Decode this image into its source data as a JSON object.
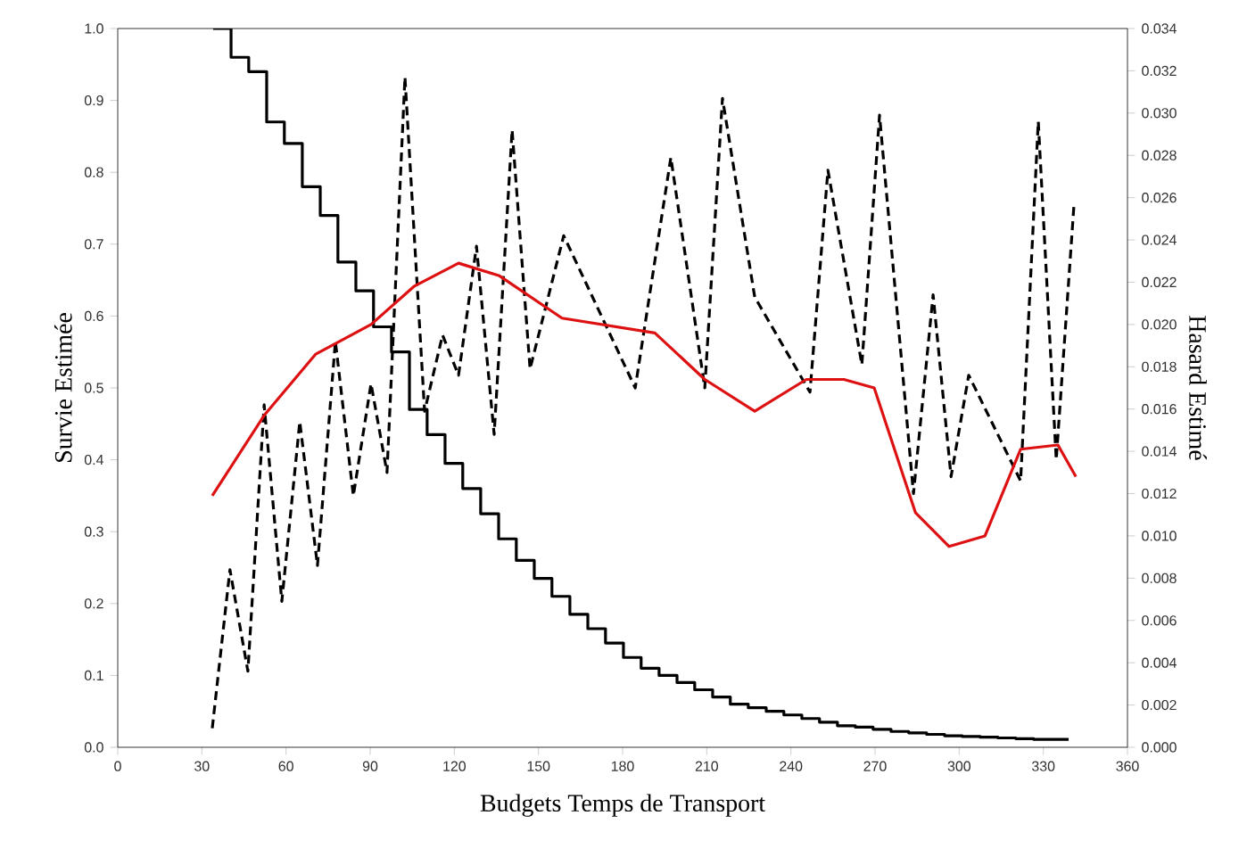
{
  "chart_data": {
    "type": "line",
    "xlabel": "Budgets Temps de Transport",
    "ylabel": "Survie Estimée",
    "y2label": "Hasard Estimé",
    "xlim": [
      0,
      360
    ],
    "xticks": [
      0,
      30,
      60,
      90,
      120,
      150,
      180,
      210,
      240,
      270,
      300,
      330,
      360
    ],
    "ylim": [
      0,
      1
    ],
    "yticks": [
      {
        "value": 0,
        "label": "0.0"
      },
      0.1,
      0.2,
      0.3,
      0.4,
      0.5,
      0.6,
      0.7,
      0.8,
      0.9,
      {
        "value": 1,
        "label": "1.0"
      }
    ],
    "y2lim": [
      0,
      0.034
    ],
    "y2ticks": [
      {
        "value": 0,
        "label": "0.000"
      },
      {
        "value": 0.002,
        "label": "0.002"
      },
      {
        "value": 0.004,
        "label": "0.004"
      },
      {
        "value": 0.006,
        "label": "0.006"
      },
      {
        "value": 0.008,
        "label": "0.008"
      },
      {
        "value": 0.01,
        "label": "0.010"
      },
      {
        "value": 0.012,
        "label": "0.012"
      },
      {
        "value": 0.014,
        "label": "0.014"
      },
      {
        "value": 0.016,
        "label": "0.016"
      },
      {
        "value": 0.018,
        "label": "0.018"
      },
      {
        "value": 0.02,
        "label": "0.020"
      },
      {
        "value": 0.022,
        "label": "0.022"
      },
      {
        "value": 0.024,
        "label": "0.024"
      },
      {
        "value": 0.026,
        "label": "0.026"
      },
      {
        "value": 0.028,
        "label": "0.028"
      },
      {
        "value": 0.03,
        "label": "0.030"
      },
      {
        "value": 0.032,
        "label": "0.032"
      },
      {
        "value": 0.034,
        "label": "0.034"
      }
    ],
    "series": [
      {
        "type": "step",
        "color": "#000000",
        "line_style": "solid",
        "x": [
          34,
          40.4,
          46.7,
          53.1,
          59.4,
          65.8,
          72.2,
          78.5,
          84.9,
          91.2,
          97.6,
          104,
          110.3,
          116.7,
          123,
          129.4,
          135.8,
          142.1,
          148.5,
          154.8,
          161.2,
          167.6,
          173.9,
          180.3,
          186.6,
          193,
          199.4,
          205.7,
          212.1,
          218.4,
          224.8,
          231.2,
          237.5,
          243.9,
          250.2,
          256.6,
          263,
          269.3,
          275.7,
          282,
          288.4,
          294.8,
          301.1,
          307.5,
          313.8,
          320.2,
          326.6,
          332.9,
          339
        ],
        "values": [
          1.0,
          0.96,
          0.94,
          0.87,
          0.84,
          0.78,
          0.74,
          0.675,
          0.635,
          0.585,
          0.55,
          0.47,
          0.435,
          0.395,
          0.36,
          0.325,
          0.29,
          0.26,
          0.235,
          0.21,
          0.185,
          0.165,
          0.145,
          0.125,
          0.11,
          0.1,
          0.09,
          0.08,
          0.07,
          0.06,
          0.055,
          0.05,
          0.045,
          0.04,
          0.035,
          0.03,
          0.028,
          0.025,
          0.022,
          0.02,
          0.018,
          0.016,
          0.015,
          0.014,
          0.013,
          0.012,
          0.011,
          0.011,
          0.011
        ]
      },
      {
        "axis": "y2",
        "color": "#000000",
        "line_style": "dashed",
        "x": [
          33.7,
          40,
          46.4,
          52.2,
          58.5,
          64.9,
          71.2,
          77.6,
          84,
          90.3,
          96,
          102.4,
          109.4,
          115.8,
          121.5,
          127.9,
          134.2,
          140.6,
          147,
          159,
          184.5,
          197.2,
          209.3,
          215.6,
          227.1,
          246.8,
          253.2,
          265.3,
          271.6,
          283.7,
          290.7,
          297.1,
          303.4,
          321.9,
          328.2,
          334.6,
          341
        ],
        "values": [
          0.0009,
          0.0084,
          0.0036,
          0.0162,
          0.0069,
          0.0154,
          0.0086,
          0.0192,
          0.0119,
          0.0172,
          0.013,
          0.0317,
          0.0159,
          0.0195,
          0.0176,
          0.0237,
          0.0148,
          0.0292,
          0.0179,
          0.0242,
          0.017,
          0.0279,
          0.017,
          0.0307,
          0.0213,
          0.0168,
          0.0273,
          0.0181,
          0.0299,
          0.012,
          0.0214,
          0.0128,
          0.0176,
          0.0126,
          0.0296,
          0.0136,
          0.0258
        ]
      },
      {
        "axis": "y2",
        "color": "#dd1111",
        "line_style": "solid",
        "x": [
          33.7,
          52.2,
          70.6,
          90.3,
          105.6,
          121.5,
          136.1,
          158.4,
          191.5,
          209.3,
          227.1,
          245.5,
          258.9,
          269.7,
          284.4,
          296.4,
          309.2,
          321.9,
          335.2,
          341.6
        ],
        "values": [
          0.0119,
          0.0157,
          0.0186,
          0.02,
          0.0218,
          0.0229,
          0.0223,
          0.0203,
          0.0196,
          0.0174,
          0.0159,
          0.0174,
          0.0174,
          0.017,
          0.0111,
          0.0095,
          0.01,
          0.0141,
          0.0143,
          0.0128
        ]
      }
    ]
  }
}
